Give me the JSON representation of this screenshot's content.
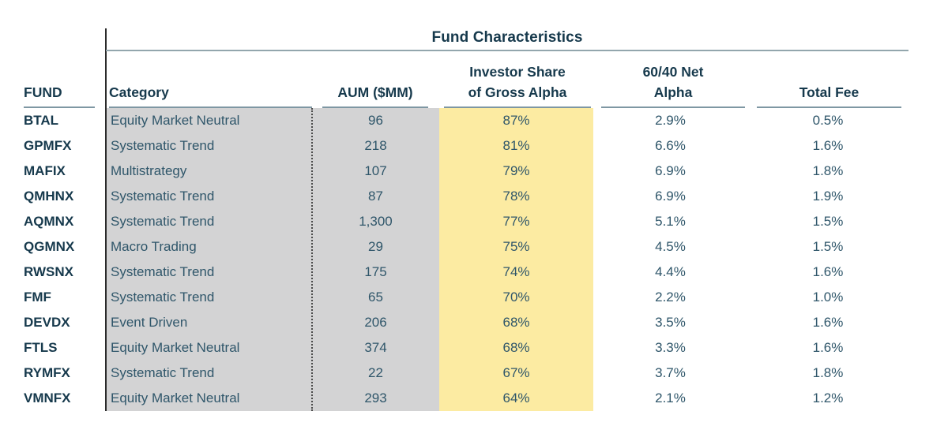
{
  "colors": {
    "background": "#ffffff",
    "gray_band": "#d3d3d4",
    "yellow_band": "#fceba2",
    "heading_text": "#16394c",
    "body_text": "#2f566a",
    "header_underline": "#7e97a3",
    "title_underline": "#93a6ad",
    "divider_line": "#2b2b2b"
  },
  "table": {
    "title": "Fund Characteristics",
    "columns": [
      {
        "id": "fund",
        "line1": "",
        "line2": "FUND"
      },
      {
        "id": "category",
        "line1": "",
        "line2": "Category"
      },
      {
        "id": "aum",
        "line1": "",
        "line2": "AUM ($MM)"
      },
      {
        "id": "share",
        "line1": "Investor Share",
        "line2": "of Gross Alpha"
      },
      {
        "id": "alpha",
        "line1": "60/40 Net",
        "line2": "Alpha"
      },
      {
        "id": "fee",
        "line1": "",
        "line2": "Total Fee"
      }
    ]
  },
  "chart_data": {
    "type": "table",
    "title": "Fund Characteristics",
    "columns": [
      "FUND",
      "Category",
      "AUM ($MM)",
      "Investor Share of Gross Alpha",
      "60/40 Net Alpha",
      "Total Fee"
    ],
    "rows": [
      {
        "fund": "BTAL",
        "category": "Equity Market Neutral",
        "aum": "96",
        "share": "87%",
        "alpha": "2.9%",
        "fee": "0.5%"
      },
      {
        "fund": "GPMFX",
        "category": "Systematic Trend",
        "aum": "218",
        "share": "81%",
        "alpha": "6.6%",
        "fee": "1.6%"
      },
      {
        "fund": "MAFIX",
        "category": "Multistrategy",
        "aum": "107",
        "share": "79%",
        "alpha": "6.9%",
        "fee": "1.8%"
      },
      {
        "fund": "QMHNX",
        "category": "Systematic Trend",
        "aum": "87",
        "share": "78%",
        "alpha": "6.9%",
        "fee": "1.9%"
      },
      {
        "fund": "AQMNX",
        "category": "Systematic Trend",
        "aum": "1,300",
        "share": "77%",
        "alpha": "5.1%",
        "fee": "1.5%"
      },
      {
        "fund": "QGMNX",
        "category": "Macro Trading",
        "aum": "29",
        "share": "75%",
        "alpha": "4.5%",
        "fee": "1.5%"
      },
      {
        "fund": "RWSNX",
        "category": "Systematic Trend",
        "aum": "175",
        "share": "74%",
        "alpha": "4.4%",
        "fee": "1.6%"
      },
      {
        "fund": "FMF",
        "category": "Systematic Trend",
        "aum": "65",
        "share": "70%",
        "alpha": "2.2%",
        "fee": "1.0%"
      },
      {
        "fund": "DEVDX",
        "category": "Event Driven",
        "aum": "206",
        "share": "68%",
        "alpha": "3.5%",
        "fee": "1.6%"
      },
      {
        "fund": "FTLS",
        "category": "Equity Market Neutral",
        "aum": "374",
        "share": "68%",
        "alpha": "3.3%",
        "fee": "1.6%"
      },
      {
        "fund": "RYMFX",
        "category": "Systematic Trend",
        "aum": "22",
        "share": "67%",
        "alpha": "3.7%",
        "fee": "1.8%"
      },
      {
        "fund": "VMNFX",
        "category": "Equity Market Neutral",
        "aum": "293",
        "share": "64%",
        "alpha": "2.1%",
        "fee": "1.2%"
      }
    ],
    "highlights": {
      "gray_background_columns": [
        "Category",
        "AUM ($MM)"
      ],
      "yellow_background_columns": [
        "Investor Share of Gross Alpha"
      ]
    }
  }
}
